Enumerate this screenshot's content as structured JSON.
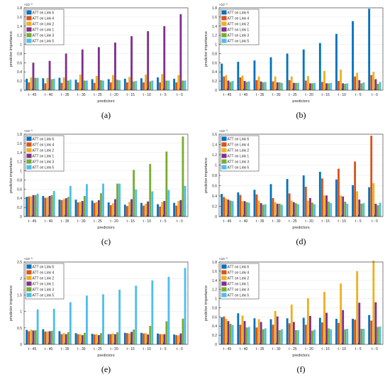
{
  "colors": {
    "ATT on Link 6": "#0072BD",
    "ATT on Link 4": "#D95319",
    "ATT on Link 2": "#EDB120",
    "ATT on Link 1": "#7E2F8E",
    "ATT on Link 3": "#77AC30",
    "ATT on Link 5": "#4DBEEE"
  },
  "chart_data": [
    {
      "caption": "(a)",
      "type": "bar",
      "xlabel": "predictors",
      "ylabel": "predictor importance",
      "exponent_label": "×10⁻³",
      "ylim": [
        0,
        0.0018
      ],
      "yticks": [
        "0",
        "0.2",
        "0.4",
        "0.6",
        "0.8",
        "1",
        "1.2",
        "1.4",
        "1.6",
        "1.8"
      ],
      "categories": [
        "t - 45",
        "t - 40",
        "t - 35",
        "t - 30",
        "t - 25",
        "t - 20",
        "t - 15",
        "t - 10",
        "t - 5",
        "t - 0"
      ],
      "legend_position": "top-left",
      "series": [
        {
          "name": "ATT on Link 6",
          "values": [
            0.00025,
            0.00026,
            0.00027,
            0.00023,
            0.00024,
            0.00024,
            0.00025,
            0.00026,
            0.00028,
            0.00025
          ]
        },
        {
          "name": "ATT on Link 4",
          "values": [
            0.00017,
            0.00015,
            0.00016,
            0.00017,
            0.00016,
            0.00017,
            0.00017,
            0.00017,
            0.00017,
            0.00017
          ]
        },
        {
          "name": "ATT on Link 2",
          "values": [
            0.00028,
            0.00027,
            0.00028,
            0.00034,
            0.00031,
            0.00033,
            0.00029,
            0.00034,
            0.00035,
            0.00033
          ]
        },
        {
          "name": "ATT on Link 1",
          "values": [
            0.0006,
            0.00064,
            0.0008,
            0.00089,
            0.00094,
            0.00104,
            0.00118,
            0.00129,
            0.0014,
            0.00166
          ]
        },
        {
          "name": "ATT on Link 3",
          "values": [
            0.00027,
            0.00024,
            0.00021,
            0.00021,
            0.00022,
            0.00023,
            0.00019,
            0.00019,
            0.00021,
            0.00021
          ]
        },
        {
          "name": "ATT on Link 5",
          "values": [
            0.00027,
            0.00025,
            0.00023,
            0.00021,
            0.00021,
            0.00022,
            0.0002,
            0.00021,
            0.00021,
            0.00021
          ]
        }
      ]
    },
    {
      "caption": "(b)",
      "type": "bar",
      "xlabel": "predictors",
      "ylabel": "predictor importance",
      "exponent_label": "×10⁻³",
      "ylim": [
        0,
        0.0018
      ],
      "yticks": [
        "0",
        "0.2",
        "0.4",
        "0.6",
        "0.8",
        "1",
        "1.2",
        "1.4",
        "1.6",
        "1.8"
      ],
      "categories": [
        "t - 45",
        "t - 40",
        "t - 35",
        "t - 30",
        "t - 25",
        "t - 20",
        "t - 15",
        "t - 10",
        "t - 5",
        "t - 0"
      ],
      "legend_position": "top-left",
      "series": [
        {
          "name": "ATT on Link 6",
          "values": [
            0.00058,
            0.00062,
            0.00065,
            0.00072,
            0.0008,
            0.00089,
            0.00103,
            0.00123,
            0.00151,
            0.00178
          ]
        },
        {
          "name": "ATT on Link 4",
          "values": [
            0.0003,
            0.00028,
            0.00022,
            0.00019,
            0.00022,
            0.00021,
            0.00018,
            0.0002,
            0.0003,
            0.00033
          ]
        },
        {
          "name": "ATT on Link 2",
          "values": [
            0.00033,
            0.00032,
            0.0003,
            0.0003,
            0.0003,
            0.00031,
            0.00042,
            0.00045,
            0.00038,
            0.0004
          ]
        },
        {
          "name": "ATT on Link 1",
          "values": [
            0.00021,
            0.0002,
            0.00019,
            0.00017,
            0.00016,
            0.00015,
            0.00015,
            0.00015,
            0.00022,
            0.00024
          ]
        },
        {
          "name": "ATT on Link 3",
          "values": [
            0.00018,
            0.00018,
            0.00017,
            0.00017,
            0.00016,
            0.00015,
            0.00015,
            0.00014,
            0.00015,
            0.00014
          ]
        },
        {
          "name": "ATT on Link 5",
          "values": [
            0.0002,
            0.00019,
            0.00018,
            0.00016,
            0.00016,
            0.00016,
            0.00016,
            0.00015,
            0.00017,
            0.00018
          ]
        }
      ]
    },
    {
      "caption": "(c)",
      "type": "bar",
      "xlabel": "predictors",
      "ylabel": "predictor importance",
      "exponent_label": "×10⁻³",
      "ylim": [
        0,
        0.0018
      ],
      "yticks": [
        "0",
        "0.2",
        "0.4",
        "0.6",
        "0.8",
        "1",
        "1.2",
        "1.4",
        "1.6",
        "1.8"
      ],
      "categories": [
        "t - 45",
        "t - 40",
        "t - 35",
        "t - 30",
        "t - 25",
        "t - 20",
        "t - 15",
        "t - 10",
        "t - 5",
        "t - 0"
      ],
      "legend_position": "top-left",
      "series": [
        {
          "name": "ATT on Link 6",
          "values": [
            0.00043,
            0.00045,
            0.00037,
            0.00037,
            0.00035,
            0.00031,
            0.00026,
            0.0003,
            0.00027,
            0.0003
          ]
        },
        {
          "name": "ATT on Link 4",
          "values": [
            0.00044,
            0.00041,
            0.00036,
            0.00031,
            0.0003,
            0.00025,
            0.00023,
            0.00024,
            0.00022,
            0.00024
          ]
        },
        {
          "name": "ATT on Link 2",
          "values": [
            0.00044,
            0.00042,
            0.00038,
            0.00032,
            0.00032,
            0.00029,
            0.00032,
            0.00028,
            0.00032,
            0.00034
          ]
        },
        {
          "name": "ATT on Link 1",
          "values": [
            0.00047,
            0.00045,
            0.0004,
            0.00034,
            0.00036,
            0.00038,
            0.00038,
            0.00033,
            0.00034,
            0.00036
          ]
        },
        {
          "name": "ATT on Link 3",
          "values": [
            0.00047,
            0.00047,
            0.00043,
            0.00045,
            0.00051,
            0.00072,
            0.00102,
            0.00115,
            0.00142,
            0.00175
          ]
        },
        {
          "name": "ATT on Link 5",
          "values": [
            0.0005,
            0.00056,
            0.00067,
            0.00071,
            0.00072,
            0.00072,
            0.00059,
            0.00055,
            0.00058,
            0.00067
          ]
        }
      ]
    },
    {
      "caption": "(d)",
      "type": "bar",
      "xlabel": "predictors",
      "ylabel": "predictor importance",
      "exponent_label": "×10⁻³",
      "ylim": [
        0,
        0.0016
      ],
      "yticks": [
        "0",
        "0.2",
        "0.4",
        "0.6",
        "0.8",
        "1",
        "1.2",
        "1.4",
        "1.6"
      ],
      "categories": [
        "t - 45",
        "t - 40",
        "t - 35",
        "t - 30",
        "t - 25",
        "t - 20",
        "t - 15",
        "t - 10",
        "t - 5",
        "t - 0"
      ],
      "legend_position": "top-left",
      "series": [
        {
          "name": "ATT on Link 6",
          "values": [
            0.00044,
            0.00047,
            0.00052,
            0.00063,
            0.00073,
            0.0008,
            0.00087,
            0.00072,
            0.00061,
            0.00057
          ]
        },
        {
          "name": "ATT on Link 4",
          "values": [
            0.00038,
            0.00042,
            0.00043,
            0.00036,
            0.00045,
            0.00058,
            0.00074,
            0.00093,
            0.00107,
            0.00157
          ]
        },
        {
          "name": "ATT on Link 2",
          "values": [
            0.00035,
            0.0003,
            0.00031,
            0.00028,
            0.00031,
            0.00031,
            0.00041,
            0.00041,
            0.00049,
            0.00065
          ]
        },
        {
          "name": "ATT on Link 1",
          "values": [
            0.00033,
            0.0003,
            0.00026,
            0.00025,
            0.00028,
            0.00036,
            0.00041,
            0.00039,
            0.00033,
            0.00025
          ]
        },
        {
          "name": "ATT on Link 3",
          "values": [
            0.00031,
            0.00028,
            0.00023,
            0.00025,
            0.00026,
            0.00027,
            0.00029,
            0.00029,
            0.00025,
            0.00022
          ]
        },
        {
          "name": "ATT on Link 5",
          "values": [
            0.0003,
            0.00027,
            0.00024,
            0.00023,
            0.00024,
            0.00024,
            0.00026,
            0.00025,
            0.00026,
            0.00027
          ]
        }
      ]
    },
    {
      "caption": "(e)",
      "type": "bar",
      "xlabel": "predictors",
      "ylabel": "predictor importance",
      "exponent_label": "×10⁻³",
      "ylim": [
        0,
        0.0025
      ],
      "yticks": [
        "0",
        "0.5",
        "1",
        "1.5",
        "2",
        "2.5"
      ],
      "categories": [
        "t - 45",
        "t - 40",
        "t - 35",
        "t - 30",
        "t - 25",
        "t - 20",
        "t - 15",
        "t - 10",
        "t - 5",
        "t - 0"
      ],
      "legend_position": "top-left",
      "series": [
        {
          "name": "ATT on Link 6",
          "values": [
            0.00044,
            0.00046,
            0.0004,
            0.00034,
            0.00032,
            0.00031,
            0.00035,
            0.00035,
            0.00033,
            0.0003
          ]
        },
        {
          "name": "ATT on Link 4",
          "values": [
            0.0004,
            0.00039,
            0.00031,
            0.00031,
            0.0003,
            0.00031,
            0.00034,
            0.00033,
            0.00031,
            0.00028
          ]
        },
        {
          "name": "ATT on Link 2",
          "values": [
            0.00045,
            0.00039,
            0.00034,
            0.00031,
            0.00031,
            0.00033,
            0.00033,
            0.00034,
            0.00031,
            0.00027
          ]
        },
        {
          "name": "ATT on Link 1",
          "values": [
            0.00042,
            0.0004,
            0.00031,
            0.00028,
            0.00028,
            0.00031,
            0.00038,
            0.0003,
            0.00031,
            0.00033
          ]
        },
        {
          "name": "ATT on Link 3",
          "values": [
            0.00043,
            0.00041,
            0.00037,
            0.00035,
            0.00034,
            0.00037,
            0.00045,
            0.00056,
            0.0007,
            0.00078
          ]
        },
        {
          "name": "ATT on Link 5",
          "values": [
            0.00106,
            0.00108,
            0.00128,
            0.00148,
            0.00152,
            0.00166,
            0.00178,
            0.00194,
            0.00205,
            0.00232
          ]
        }
      ]
    },
    {
      "caption": "(f)",
      "type": "bar",
      "xlabel": "predictors",
      "ylabel": "predictor importance",
      "exponent_label": "×10⁻³",
      "ylim": [
        0,
        0.0018
      ],
      "yticks": [
        "0",
        "0.2",
        "0.4",
        "0.6",
        "0.8",
        "1",
        "1.2",
        "1.4",
        "1.6",
        "1.8"
      ],
      "categories": [
        "t - 45",
        "t - 40",
        "t - 35",
        "t - 30",
        "t - 25",
        "t - 20",
        "t - 15",
        "t - 10",
        "t - 5",
        "t - 0"
      ],
      "legend_position": "top-left",
      "series": [
        {
          "name": "ATT on Link 6",
          "values": [
            0.00059,
            0.00068,
            0.00057,
            0.00055,
            0.00057,
            0.00058,
            0.00058,
            0.00056,
            0.00056,
            0.00064
          ]
        },
        {
          "name": "ATT on Link 4",
          "values": [
            0.00061,
            0.00043,
            0.00037,
            0.00043,
            0.00046,
            0.00043,
            0.00048,
            0.00047,
            0.00054,
            0.00052
          ]
        },
        {
          "name": "ATT on Link 2",
          "values": [
            0.00056,
            0.00063,
            0.00055,
            0.00073,
            0.00087,
            0.00101,
            0.00115,
            0.00133,
            0.0016,
            0.00183
          ]
        },
        {
          "name": "ATT on Link 1",
          "values": [
            0.00051,
            0.00051,
            0.00049,
            0.00061,
            0.00049,
            0.00062,
            0.00069,
            0.00075,
            0.00091,
            0.00092
          ]
        },
        {
          "name": "ATT on Link 3",
          "values": [
            0.00045,
            0.00037,
            0.00033,
            0.00031,
            0.00031,
            0.0003,
            0.00035,
            0.00033,
            0.00034,
            0.00038
          ]
        },
        {
          "name": "ATT on Link 5",
          "values": [
            0.00042,
            0.00038,
            0.00035,
            0.00033,
            0.00031,
            0.00032,
            0.00033,
            0.00034,
            0.00034,
            0.00039
          ]
        }
      ]
    }
  ]
}
